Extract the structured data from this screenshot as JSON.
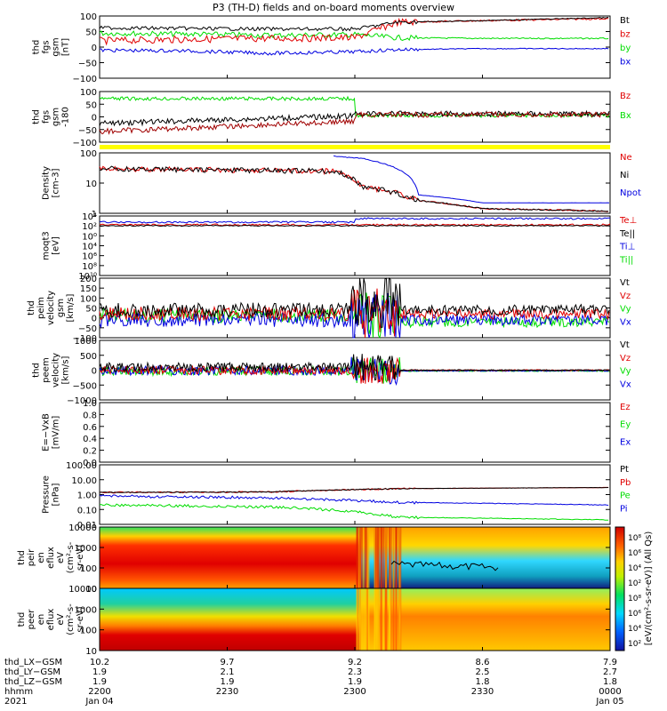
{
  "title": "P3 (TH-D) fields and on-board moments overview",
  "colors": {
    "black": "#000000",
    "red": "#e00000",
    "green": "#00dd00",
    "blue": "#0000e0",
    "yellow": "#ffff00"
  },
  "panels": [
    {
      "id": "fgs-gsm",
      "ylabel": [
        "thd",
        "fgs",
        "gsm",
        "[nT]"
      ],
      "ticks": [
        "100",
        "50",
        "0",
        "−50",
        "−100"
      ],
      "ylim": [
        -100,
        100
      ],
      "legend": [
        {
          "label": "Bt",
          "color": "#000000"
        },
        {
          "label": "bz",
          "color": "#e00000"
        },
        {
          "label": "by",
          "color": "#00dd00"
        },
        {
          "label": "bx",
          "color": "#0000e0"
        }
      ]
    },
    {
      "id": "fgs-gse",
      "ylabel": [
        "thd",
        "fgs",
        "gsm",
        "-180"
      ],
      "ticks": [
        "100",
        "50",
        "0",
        "−50",
        "−100"
      ],
      "ylim": [
        -100,
        100
      ],
      "legend": [
        {
          "label": "Bz",
          "color": "#e00000"
        },
        {
          "label": "Bx",
          "color": "#00dd00"
        }
      ]
    },
    {
      "id": "density",
      "ylabel": [
        "Density",
        "[cm-3]"
      ],
      "ticks": [
        "100",
        "10",
        "1"
      ],
      "ylim": [
        1,
        200
      ],
      "legend": [
        {
          "label": "Ne",
          "color": "#e00000"
        },
        {
          "label": "Ni",
          "color": "#000000"
        },
        {
          "label": "Npot",
          "color": "#0000e0"
        }
      ]
    },
    {
      "id": "temperature",
      "ylabel": [
        "moqt3",
        "[eV]"
      ],
      "ticks": [
        "10⁴",
        "10²",
        "10⁰",
        "10⁴",
        "10⁶",
        "10⁸",
        "10¹⁰"
      ],
      "legend": [
        {
          "label": "Te⊥",
          "color": "#e00000"
        },
        {
          "label": "Te||",
          "color": "#000000"
        },
        {
          "label": "Ti⊥",
          "color": "#0000e0"
        },
        {
          "label": "Ti||",
          "color": "#00dd00"
        }
      ]
    },
    {
      "id": "peim-velocity",
      "ylabel": [
        "thd",
        "peim",
        "velocity",
        "gsm",
        "[km/s]"
      ],
      "ticks": [
        "200",
        "150",
        "100",
        "50",
        "0",
        "−50",
        "−100"
      ],
      "ylim": [
        -100,
        200
      ],
      "legend": [
        {
          "label": "Vt",
          "color": "#000000"
        },
        {
          "label": "Vz",
          "color": "#e00000"
        },
        {
          "label": "Vy",
          "color": "#00dd00"
        },
        {
          "label": "Vx",
          "color": "#0000e0"
        }
      ]
    },
    {
      "id": "peem-velocity",
      "ylabel": [
        "thd",
        "peem",
        "velocity",
        "[km/s]"
      ],
      "ticks": [
        "1000",
        "500",
        "0",
        "−500",
        "−1000"
      ],
      "ylim": [
        -1000,
        1000
      ],
      "legend": [
        {
          "label": "Vt",
          "color": "#000000"
        },
        {
          "label": "Vz",
          "color": "#e00000"
        },
        {
          "label": "Vy",
          "color": "#00dd00"
        },
        {
          "label": "Vx",
          "color": "#0000e0"
        }
      ]
    },
    {
      "id": "efield",
      "ylabel": [
        "E=−VxB",
        "[mV/m]"
      ],
      "ticks": [
        "1.0",
        "0.8",
        "0.6",
        "0.4",
        "0.2",
        "0.0"
      ],
      "ylim": [
        0,
        1
      ],
      "legend": [
        {
          "label": "Ez",
          "color": "#e00000"
        },
        {
          "label": "Ey",
          "color": "#00dd00"
        },
        {
          "label": "Ex",
          "color": "#0000e0"
        }
      ]
    },
    {
      "id": "pressure",
      "ylabel": [
        "Pressure",
        "[nPa]"
      ],
      "ticks": [
        "100.00",
        "10.00",
        "1.00",
        "0.10",
        "0.01"
      ],
      "ylim": [
        0.01,
        100
      ],
      "legend": [
        {
          "label": "Pt",
          "color": "#000000"
        },
        {
          "label": "Pb",
          "color": "#e00000"
        },
        {
          "label": "Pe",
          "color": "#00dd00"
        },
        {
          "label": "Pi",
          "color": "#0000e0"
        }
      ]
    },
    {
      "id": "peir-spec",
      "ylabel": [
        "thd",
        "peir",
        "en",
        "eflux",
        "eV",
        "(cm²-s-",
        "sr-eV)"
      ],
      "ticks": [
        "10000",
        "1000",
        "100",
        "10"
      ],
      "ylim": [
        10,
        20000
      ]
    },
    {
      "id": "peer-spec",
      "ylabel": [
        "thd",
        "peer",
        "en",
        "eflux",
        "eV",
        "(cm²-s-",
        "sr-eV)"
      ],
      "ticks": [
        "10000",
        "1000",
        "100",
        "10"
      ],
      "ylim": [
        10,
        20000
      ]
    }
  ],
  "colorbar": {
    "ticks": [
      "10⁸",
      "10⁶",
      "10⁴",
      "10²",
      "10⁸",
      "10⁶",
      "10⁴",
      "10²"
    ],
    "label": "[eV/(cm²-s-sr-eV)] (All Qs)"
  },
  "xaxis": {
    "row_labels": [
      "thd_LX−GSM",
      "thd_LY−GSM",
      "thd_LZ−GSM",
      "hhmm",
      "2021"
    ],
    "columns": [
      {
        "values": [
          "10.2",
          "1.9",
          "1.9",
          "2200",
          "Jan 04"
        ]
      },
      {
        "values": [
          "9.7",
          "2.1",
          "1.9",
          "2230",
          ""
        ]
      },
      {
        "values": [
          "9.2",
          "2.3",
          "1.9",
          "2300",
          ""
        ]
      },
      {
        "values": [
          "8.6",
          "2.5",
          "1.8",
          "2330",
          ""
        ]
      },
      {
        "values": [
          "7.9",
          "2.7",
          "1.8",
          "0000",
          "Jan 05"
        ]
      }
    ]
  },
  "chart_data": {
    "type": "line",
    "title": "P3 (TH-D) fields and on-board moments overview",
    "x_tick_labels": [
      "2200",
      "2230",
      "2300",
      "2330",
      "0000"
    ],
    "series": [
      {
        "name": "Bt",
        "x": [
          0,
          20,
          40,
          60,
          70,
          90,
          120
        ],
        "values": [
          62,
          60,
          58,
          58,
          80,
          85,
          95
        ]
      },
      {
        "name": "bz",
        "x": [
          0,
          20,
          40,
          60,
          70,
          90,
          120
        ],
        "values": [
          20,
          25,
          28,
          30,
          80,
          85,
          92
        ]
      },
      {
        "name": "by",
        "x": [
          0,
          20,
          40,
          60,
          70,
          90,
          120
        ],
        "values": [
          45,
          42,
          38,
          40,
          30,
          28,
          28
        ]
      },
      {
        "name": "bx",
        "x": [
          0,
          20,
          40,
          60,
          70,
          90,
          120
        ],
        "values": [
          -10,
          -12,
          -20,
          -15,
          -8,
          -5,
          -5
        ]
      },
      {
        "name": "Ne",
        "x": [
          0,
          25,
          55,
          62,
          75,
          90,
          120
        ],
        "values": [
          50,
          45,
          40,
          10,
          3,
          1.5,
          1.2
        ]
      },
      {
        "name": "Npot",
        "x": [
          55,
          62,
          75,
          90,
          120
        ],
        "values": [
          150,
          120,
          5,
          2.5,
          2.5
        ]
      },
      {
        "name": "Pb",
        "x": [
          0,
          40,
          70,
          120
        ],
        "values": [
          1.4,
          1.5,
          2.5,
          3
        ]
      },
      {
        "name": "Pi",
        "x": [
          0,
          40,
          70,
          120
        ],
        "values": [
          0.8,
          0.6,
          0.3,
          0.2
        ]
      },
      {
        "name": "Pe",
        "x": [
          0,
          40,
          70,
          120
        ],
        "values": [
          0.2,
          0.15,
          0.03,
          0.02
        ]
      }
    ]
  }
}
